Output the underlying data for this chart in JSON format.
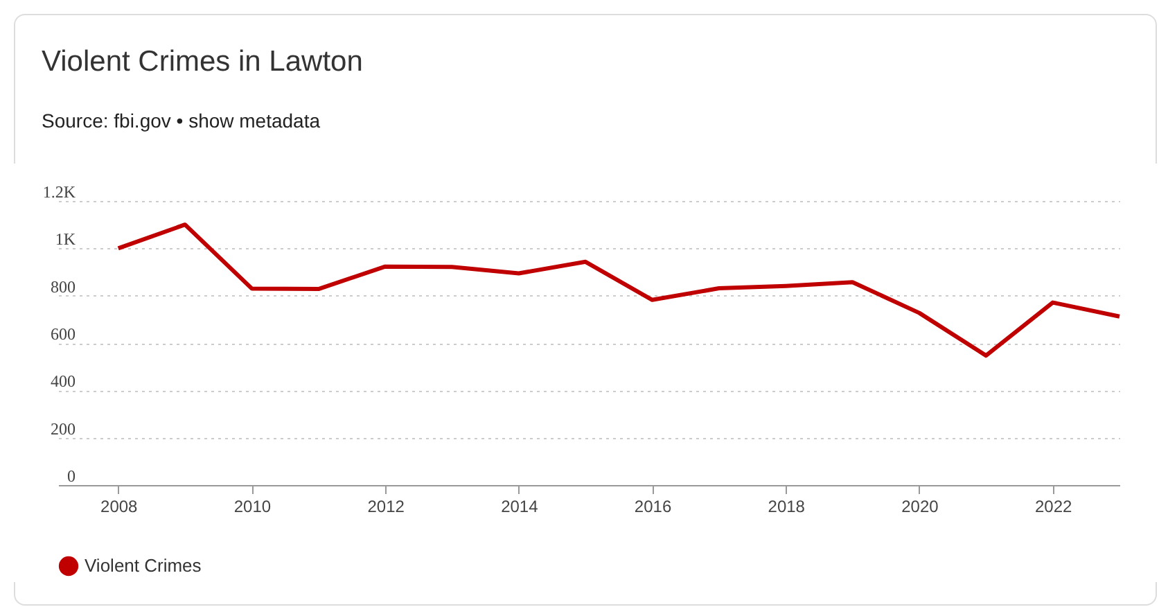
{
  "chart_data": {
    "type": "line",
    "title": "Violent Crimes in Lawton",
    "subtitle": "Source: fbi.gov • show metadata",
    "x": [
      2008,
      2009,
      2010,
      2011,
      2012,
      2013,
      2014,
      2015,
      2016,
      2017,
      2018,
      2019,
      2020,
      2021,
      2022,
      2023
    ],
    "series": [
      {
        "name": "Violent Crimes",
        "color": "#c00000",
        "values": [
          1000,
          1100,
          830,
          828,
          923,
          921,
          894,
          943,
          782,
          831,
          841,
          857,
          727,
          547,
          771,
          712
        ]
      }
    ],
    "xlim": [
      2007.1,
      2023
    ],
    "xticks": [
      2008,
      2010,
      2012,
      2014,
      2016,
      2018,
      2020,
      2022
    ],
    "ylim": [
      0,
      1200
    ],
    "yticks": [
      0,
      200,
      400,
      600,
      800,
      {
        "value": 1000,
        "label": "1K"
      },
      {
        "value": 1200,
        "label": "1.2K"
      }
    ],
    "grid": "y",
    "legend": "bottom left",
    "marker": "none",
    "line_style": "solid"
  }
}
